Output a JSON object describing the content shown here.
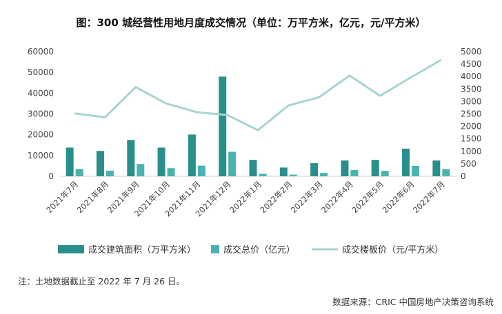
{
  "chart_data": {
    "type": "bar+line",
    "title": "图：300 城经营性用地月度成交情况（单位：万平方米，亿元，元/平方米）",
    "categories": [
      "2021年7月",
      "2021年8月",
      "2021年9月",
      "2021年10月",
      "2021年11月",
      "2021年12月",
      "2022年1月",
      "2022年2月",
      "2022年3月",
      "2022年4月",
      "2022年5月",
      "2022年6月",
      "2022年7月"
    ],
    "series": [
      {
        "name": "成交建筑面积（万平方米）",
        "type": "bar",
        "axis": "left",
        "color": "#2a8f8a",
        "values": [
          13800,
          12200,
          17500,
          13800,
          20100,
          48000,
          7900,
          4200,
          6300,
          7600,
          7900,
          13300,
          7600
        ]
      },
      {
        "name": "成交总价（亿元）",
        "type": "bar",
        "axis": "left",
        "color": "#4ab3b0",
        "values": [
          3500,
          2700,
          5900,
          3900,
          5100,
          11800,
          1200,
          800,
          1600,
          3000,
          2600,
          5000,
          3500
        ]
      },
      {
        "name": "成交楼板价（元/平方米）",
        "type": "line",
        "axis": "right",
        "color": "#a7d3d3",
        "values": [
          2520,
          2370,
          3580,
          2920,
          2570,
          2460,
          1850,
          2840,
          3170,
          4040,
          3230,
          3960,
          4670
        ]
      }
    ],
    "y_left": {
      "min": 0,
      "max": 60000,
      "ticks": [
        "0",
        "10000",
        "20000",
        "30000",
        "40000",
        "50000",
        "60000"
      ]
    },
    "y_right": {
      "min": 0,
      "max": 5000,
      "ticks": [
        "0",
        "500",
        "1000",
        "1500",
        "2000",
        "2500",
        "3000",
        "3500",
        "4000",
        "4500",
        "5000"
      ]
    },
    "grid": false,
    "legend_position": "bottom"
  },
  "note": "注：土地数据截止至 2022 年 7 月 26 日。",
  "source": "数据来源：CRIC 中国房地产决策咨询系统"
}
